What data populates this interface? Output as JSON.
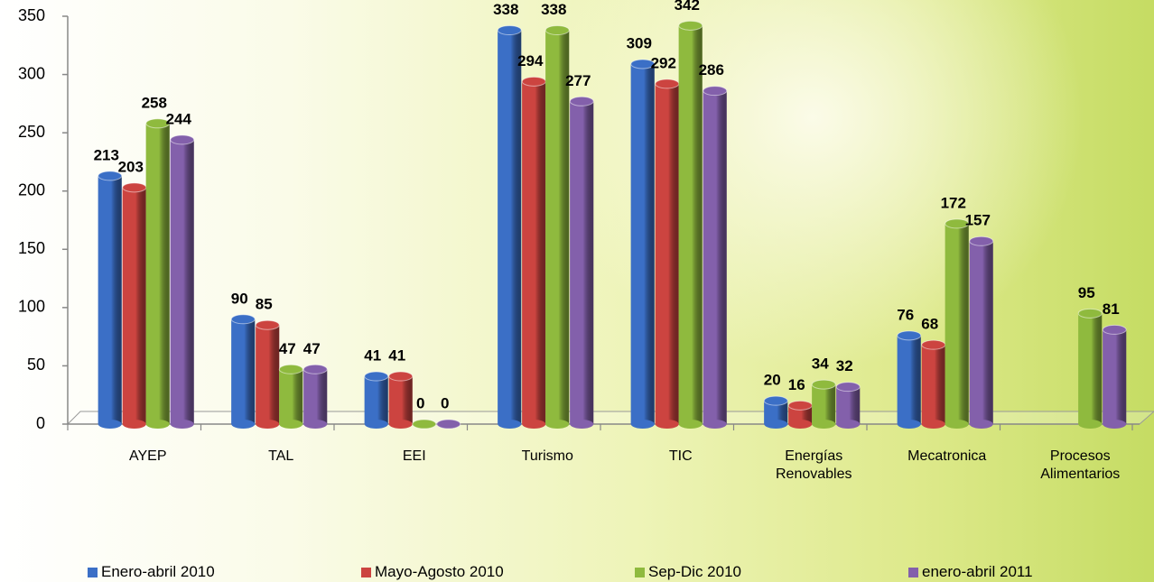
{
  "chart_data": {
    "type": "bar",
    "categories": [
      "AYEP",
      "TAL",
      "EEI",
      "Turismo",
      "TIC",
      "Energías Renovables",
      "Mecatronica",
      "Procesos Alimentarios"
    ],
    "series": [
      {
        "name": "Enero-abril 2010",
        "color": "#3b6fc6",
        "values": [
          213,
          90,
          41,
          338,
          309,
          20,
          76,
          null
        ]
      },
      {
        "name": "Mayo-Agosto 2010",
        "color": "#cc4440",
        "values": [
          203,
          85,
          41,
          294,
          292,
          16,
          68,
          null
        ]
      },
      {
        "name": "Sep-Dic 2010",
        "color": "#8fba3e",
        "values": [
          258,
          47,
          0,
          338,
          342,
          34,
          172,
          95
        ]
      },
      {
        "name": "enero-abril 2011",
        "color": "#8360ab",
        "values": [
          244,
          47,
          0,
          277,
          286,
          32,
          157,
          81
        ]
      }
    ],
    "ylim": [
      0,
      350
    ],
    "yticks": [
      0,
      50,
      100,
      150,
      200,
      250,
      300,
      350
    ],
    "grid": false,
    "legend": "bottom"
  }
}
